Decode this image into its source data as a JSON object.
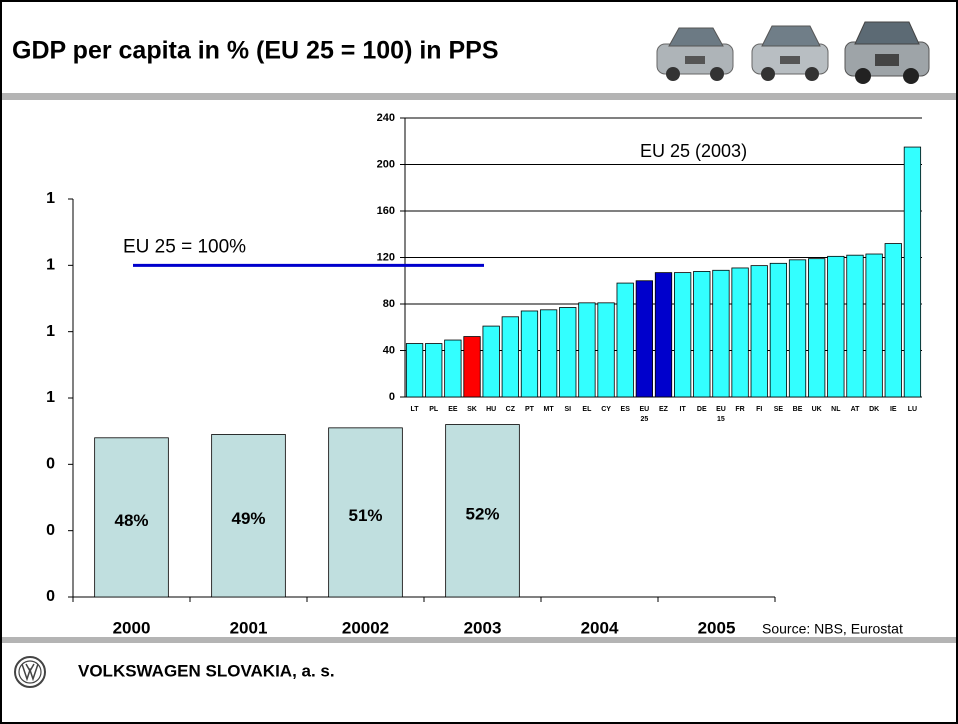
{
  "chart_data": [
    {
      "type": "bar",
      "title": "GDP per capita in % (EU 25 = 100) in PPS",
      "categories": [
        "2000",
        "2001",
        "20002",
        "2003",
        "2004",
        "2005"
      ],
      "values": [
        0.48,
        0.49,
        0.51,
        0.52,
        null,
        null
      ],
      "value_labels": [
        "48%",
        "49%",
        "51%",
        "52%",
        null,
        null
      ],
      "color": "#c0dfdf",
      "ylim": [
        0,
        1.2
      ],
      "yticks": [
        0,
        {
          "value": 0.2,
          "label": "0"
        },
        {
          "value": 0.4,
          "label": "0"
        },
        {
          "value": 0.6,
          "label": "1"
        },
        {
          "value": 0.8,
          "label": "1"
        },
        {
          "value": 1.0,
          "label": "1"
        },
        {
          "value": 1.2,
          "label": "1"
        }
      ],
      "reference_line": {
        "value": 1.0,
        "label": "EU 25 = 100%",
        "color": "#0000cc"
      },
      "source": "Source: NBS, Eurostat"
    },
    {
      "type": "bar",
      "title": "EU 25 (2003)",
      "categories": [
        "LT",
        "PL",
        "EE",
        "SK",
        "HU",
        "CZ",
        "PT",
        "MT",
        "SI",
        "EL",
        "CY",
        "ES",
        "EU 25",
        "EZ",
        "IT",
        "DE",
        "EU 15",
        "FR",
        "FI",
        "SE",
        "BE",
        "UK",
        "NL",
        "AT",
        "DK",
        "IE",
        "LU"
      ],
      "values": [
        46,
        46,
        49,
        52,
        61,
        69,
        74,
        75,
        77,
        81,
        81,
        98,
        100,
        107,
        107,
        108,
        109,
        111,
        113,
        115,
        118,
        119,
        121,
        122,
        123,
        132,
        215
      ],
      "colors": [
        "#33ffff",
        "#33ffff",
        "#33ffff",
        "#ff0000",
        "#33ffff",
        "#33ffff",
        "#33ffff",
        "#33ffff",
        "#33ffff",
        "#33ffff",
        "#33ffff",
        "#33ffff",
        "#0000cc",
        "#0000cc",
        "#33ffff",
        "#33ffff",
        "#33ffff",
        "#33ffff",
        "#33ffff",
        "#33ffff",
        "#33ffff",
        "#33ffff",
        "#33ffff",
        "#33ffff",
        "#33ffff",
        "#33ffff",
        "#33ffff"
      ],
      "ylim": [
        0,
        240
      ],
      "yticks": [
        0,
        40,
        80,
        120,
        160,
        200,
        240
      ],
      "grid": true
    }
  ],
  "footer": {
    "company": "VOLKSWAGEN SLOVAKIA, a. s."
  }
}
